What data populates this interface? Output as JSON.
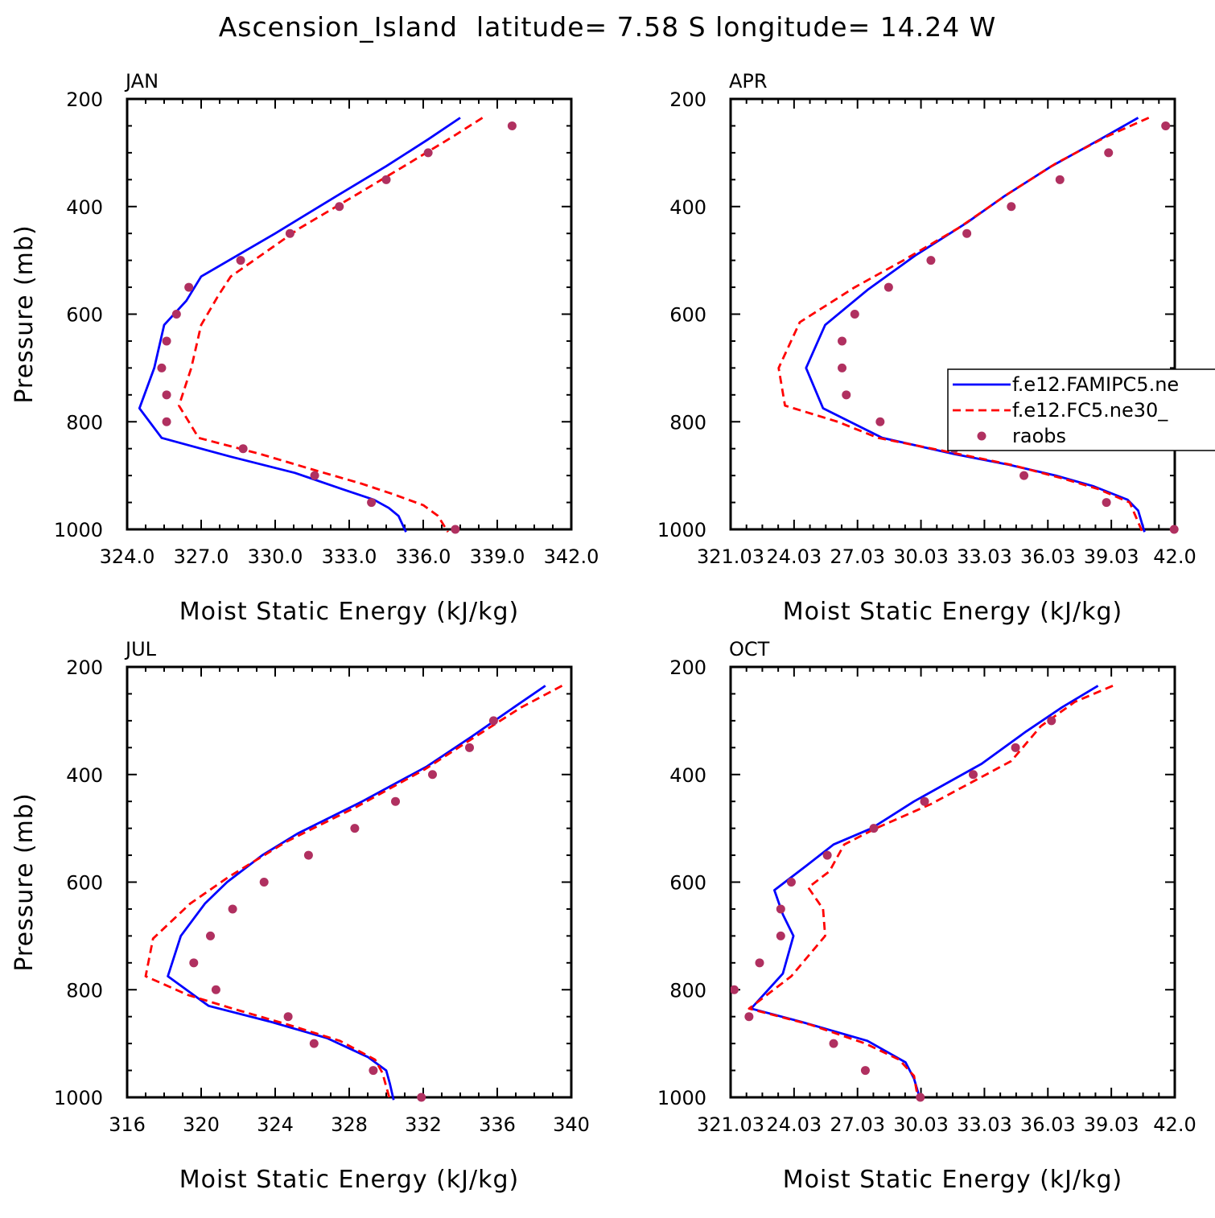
{
  "figure": {
    "title": "Ascension_Island  latitude= 7.58 S longitude= 14.24 W"
  },
  "colors": {
    "model1": "#0000ff",
    "model2": "#ff0000",
    "obs": "#b03060"
  },
  "legend": {
    "items": [
      {
        "label": "f.e12.FAMIPC5.ne",
        "style": "solid-blue-line"
      },
      {
        "label": "f.e12.FC5.ne30_",
        "style": "dashed-red-line"
      },
      {
        "label": "raobs",
        "style": "maroon-dot"
      }
    ]
  },
  "chart_data": [
    {
      "type": "line",
      "title": "JAN",
      "xlabel": "Moist Static Energy (kJ/kg)",
      "ylabel": "Pressure (mb)",
      "xlim": [
        324,
        342
      ],
      "ylim": [
        1000,
        200
      ],
      "xticks": [
        "324.0",
        "327.0",
        "330.0",
        "333.0",
        "336.0",
        "339.0",
        "342.0"
      ],
      "yticks": [
        "200",
        "400",
        "600",
        "800",
        "1000"
      ],
      "series": [
        {
          "name": "f.e12.FAMIPC5.ne",
          "style": "solid",
          "points": [
            [
              337.5,
              235
            ],
            [
              336.2,
              275
            ],
            [
              334.5,
              325
            ],
            [
              332.5,
              380
            ],
            [
              330.0,
              450
            ],
            [
              327.0,
              530
            ],
            [
              326.4,
              575
            ],
            [
              325.5,
              620
            ],
            [
              325.1,
              700
            ],
            [
              324.5,
              775
            ],
            [
              325.4,
              830
            ],
            [
              328.2,
              865
            ],
            [
              330.8,
              895
            ],
            [
              332.7,
              925
            ],
            [
              334.0,
              945
            ],
            [
              334.6,
              960
            ],
            [
              335.0,
              975
            ],
            [
              335.3,
              1005
            ]
          ]
        },
        {
          "name": "f.e12.FC5.ne30_",
          "style": "dashed",
          "points": [
            [
              338.4,
              235
            ],
            [
              337.2,
              270
            ],
            [
              335.4,
              320
            ],
            [
              333.4,
              375
            ],
            [
              331.0,
              440
            ],
            [
              328.2,
              530
            ],
            [
              327.7,
              565
            ],
            [
              327.0,
              620
            ],
            [
              326.6,
              700
            ],
            [
              326.1,
              770
            ],
            [
              326.9,
              830
            ],
            [
              329.4,
              860
            ],
            [
              331.6,
              890
            ],
            [
              333.5,
              915
            ],
            [
              334.8,
              935
            ],
            [
              336.0,
              955
            ],
            [
              336.6,
              975
            ],
            [
              337.0,
              1005
            ]
          ]
        },
        {
          "name": "raobs",
          "style": "points",
          "points": [
            [
              339.6,
              250
            ],
            [
              336.2,
              300
            ],
            [
              334.5,
              350
            ],
            [
              332.6,
              400
            ],
            [
              330.6,
              450
            ],
            [
              328.6,
              500
            ],
            [
              326.5,
              550
            ],
            [
              326.0,
              600
            ],
            [
              325.6,
              650
            ],
            [
              325.4,
              700
            ],
            [
              325.6,
              750
            ],
            [
              325.6,
              800
            ],
            [
              328.7,
              850
            ],
            [
              331.6,
              900
            ],
            [
              333.9,
              950
            ],
            [
              337.3,
              1000
            ]
          ]
        }
      ]
    },
    {
      "type": "line",
      "title": "APR",
      "xlabel": "Moist Static Energy (kJ/kg)",
      "ylabel": "",
      "xlim": [
        321.03,
        342.03
      ],
      "ylim": [
        1000,
        200
      ],
      "xticks": [
        "321.03",
        "24.03",
        "27.03",
        "30.03",
        "33.03",
        "36.03",
        "39.03",
        "42.0"
      ],
      "yticks": [
        "200",
        "400",
        "600",
        "800",
        "1000"
      ],
      "series": [
        {
          "name": "f.e12.FAMIPC5.ne",
          "style": "solid",
          "points": [
            [
              340.3,
              235
            ],
            [
              338.5,
              275
            ],
            [
              336.2,
              325
            ],
            [
              334.0,
              380
            ],
            [
              332.2,
              430
            ],
            [
              329.8,
              490
            ],
            [
              327.5,
              555
            ],
            [
              325.5,
              620
            ],
            [
              324.6,
              700
            ],
            [
              325.4,
              775
            ],
            [
              328.2,
              830
            ],
            [
              331.6,
              860
            ],
            [
              334.2,
              880
            ],
            [
              336.4,
              900
            ],
            [
              338.2,
              920
            ],
            [
              339.8,
              945
            ],
            [
              340.3,
              965
            ],
            [
              340.6,
              1005
            ]
          ]
        },
        {
          "name": "f.e12.FC5.ne30_",
          "style": "dashed",
          "points": [
            [
              340.8,
              235
            ],
            [
              338.8,
              270
            ],
            [
              336.4,
              320
            ],
            [
              334.2,
              375
            ],
            [
              331.8,
              440
            ],
            [
              329.2,
              500
            ],
            [
              326.9,
              550
            ],
            [
              324.3,
              615
            ],
            [
              323.3,
              700
            ],
            [
              323.6,
              770
            ],
            [
              326.1,
              800
            ],
            [
              328.0,
              830
            ],
            [
              331.2,
              855
            ],
            [
              334.3,
              880
            ],
            [
              336.7,
              905
            ],
            [
              338.4,
              925
            ],
            [
              339.9,
              950
            ],
            [
              340.5,
              1005
            ]
          ]
        },
        {
          "name": "raobs",
          "style": "points",
          "points": [
            [
              341.6,
              250
            ],
            [
              338.9,
              300
            ],
            [
              336.6,
              350
            ],
            [
              334.3,
              400
            ],
            [
              332.2,
              450
            ],
            [
              330.5,
              500
            ],
            [
              328.5,
              550
            ],
            [
              326.9,
              600
            ],
            [
              326.3,
              650
            ],
            [
              326.3,
              700
            ],
            [
              326.5,
              750
            ],
            [
              328.1,
              800
            ],
            [
              331.6,
              850
            ],
            [
              334.9,
              900
            ],
            [
              338.8,
              950
            ],
            [
              342.0,
              1000
            ]
          ]
        }
      ]
    },
    {
      "type": "line",
      "title": "JUL",
      "xlabel": "Moist Static Energy (kJ/kg)",
      "ylabel": "Pressure (mb)",
      "xlim": [
        316,
        340
      ],
      "ylim": [
        1000,
        200
      ],
      "xticks": [
        "316",
        "320",
        "324",
        "328",
        "332",
        "336",
        "340"
      ],
      "yticks": [
        "200",
        "400",
        "600",
        "800",
        "1000"
      ],
      "series": [
        {
          "name": "f.e12.FAMIPC5.ne",
          "style": "solid",
          "points": [
            [
              338.6,
              235
            ],
            [
              336.9,
              275
            ],
            [
              334.6,
              330
            ],
            [
              332.2,
              385
            ],
            [
              328.7,
              450
            ],
            [
              325.2,
              510
            ],
            [
              323.3,
              550
            ],
            [
              321.4,
              600
            ],
            [
              320.2,
              640
            ],
            [
              318.9,
              700
            ],
            [
              318.2,
              775
            ],
            [
              320.4,
              830
            ],
            [
              323.8,
              860
            ],
            [
              326.8,
              890
            ],
            [
              329.0,
              925
            ],
            [
              330.0,
              950
            ],
            [
              330.2,
              975
            ],
            [
              330.4,
              1005
            ]
          ]
        },
        {
          "name": "f.e12.FC5.ne30_",
          "style": "dashed",
          "points": [
            [
              339.5,
              235
            ],
            [
              337.3,
              275
            ],
            [
              334.8,
              330
            ],
            [
              332.1,
              390
            ],
            [
              328.4,
              460
            ],
            [
              324.6,
              525
            ],
            [
              321.5,
              590
            ],
            [
              319.4,
              640
            ],
            [
              317.4,
              705
            ],
            [
              317.0,
              775
            ],
            [
              319.3,
              810
            ],
            [
              321.7,
              835
            ],
            [
              324.7,
              865
            ],
            [
              327.5,
              895
            ],
            [
              329.4,
              930
            ],
            [
              329.8,
              955
            ],
            [
              330.0,
              980
            ],
            [
              330.2,
              1005
            ]
          ]
        },
        {
          "name": "raobs",
          "style": "points",
          "points": [
            [
              335.8,
              300
            ],
            [
              334.5,
              350
            ],
            [
              332.5,
              400
            ],
            [
              330.5,
              450
            ],
            [
              328.3,
              500
            ],
            [
              325.8,
              550
            ],
            [
              323.4,
              600
            ],
            [
              321.7,
              650
            ],
            [
              320.5,
              700
            ],
            [
              319.6,
              750
            ],
            [
              320.8,
              800
            ],
            [
              324.7,
              850
            ],
            [
              326.1,
              900
            ],
            [
              329.3,
              950
            ],
            [
              331.9,
              1000
            ]
          ]
        }
      ]
    },
    {
      "type": "line",
      "title": "OCT",
      "xlabel": "Moist Static Energy (kJ/kg)",
      "ylabel": "",
      "xlim": [
        321.03,
        342.03
      ],
      "ylim": [
        1000,
        200
      ],
      "xticks": [
        "321.03",
        "24.03",
        "27.03",
        "30.03",
        "33.03",
        "36.03",
        "39.03",
        "42.0"
      ],
      "yticks": [
        "200",
        "400",
        "600",
        "800",
        "1000"
      ],
      "series": [
        {
          "name": "f.e12.FAMIPC5.ne",
          "style": "solid",
          "points": [
            [
              338.4,
              235
            ],
            [
              336.7,
              275
            ],
            [
              335.0,
              320
            ],
            [
              332.9,
              380
            ],
            [
              329.7,
              450
            ],
            [
              327.7,
              500
            ],
            [
              325.9,
              530
            ],
            [
              324.6,
              570
            ],
            [
              323.1,
              615
            ],
            [
              323.5,
              660
            ],
            [
              324.0,
              700
            ],
            [
              323.5,
              770
            ],
            [
              322.0,
              835
            ],
            [
              324.4,
              860
            ],
            [
              327.5,
              895
            ],
            [
              329.3,
              935
            ],
            [
              329.7,
              965
            ],
            [
              330.0,
              1005
            ]
          ]
        },
        {
          "name": "f.e12.FC5.ne30_",
          "style": "dashed",
          "points": [
            [
              339.1,
              235
            ],
            [
              337.3,
              265
            ],
            [
              335.7,
              310
            ],
            [
              334.3,
              375
            ],
            [
              330.5,
              455
            ],
            [
              327.9,
              500
            ],
            [
              326.4,
              530
            ],
            [
              325.7,
              580
            ],
            [
              324.7,
              610
            ],
            [
              325.4,
              650
            ],
            [
              325.5,
              700
            ],
            [
              323.9,
              775
            ],
            [
              321.9,
              835
            ],
            [
              324.8,
              865
            ],
            [
              327.4,
              900
            ],
            [
              329.0,
              930
            ],
            [
              329.7,
              960
            ],
            [
              329.9,
              1005
            ]
          ]
        },
        {
          "name": "raobs",
          "style": "points",
          "points": [
            [
              336.2,
              300
            ],
            [
              334.5,
              350
            ],
            [
              332.5,
              400
            ],
            [
              330.2,
              450
            ],
            [
              327.8,
              500
            ],
            [
              325.6,
              550
            ],
            [
              323.9,
              600
            ],
            [
              323.4,
              650
            ],
            [
              323.4,
              700
            ],
            [
              322.4,
              750
            ],
            [
              321.2,
              800
            ],
            [
              321.9,
              850
            ],
            [
              325.9,
              900
            ],
            [
              327.4,
              950
            ],
            [
              330.0,
              1000
            ]
          ]
        }
      ]
    }
  ]
}
